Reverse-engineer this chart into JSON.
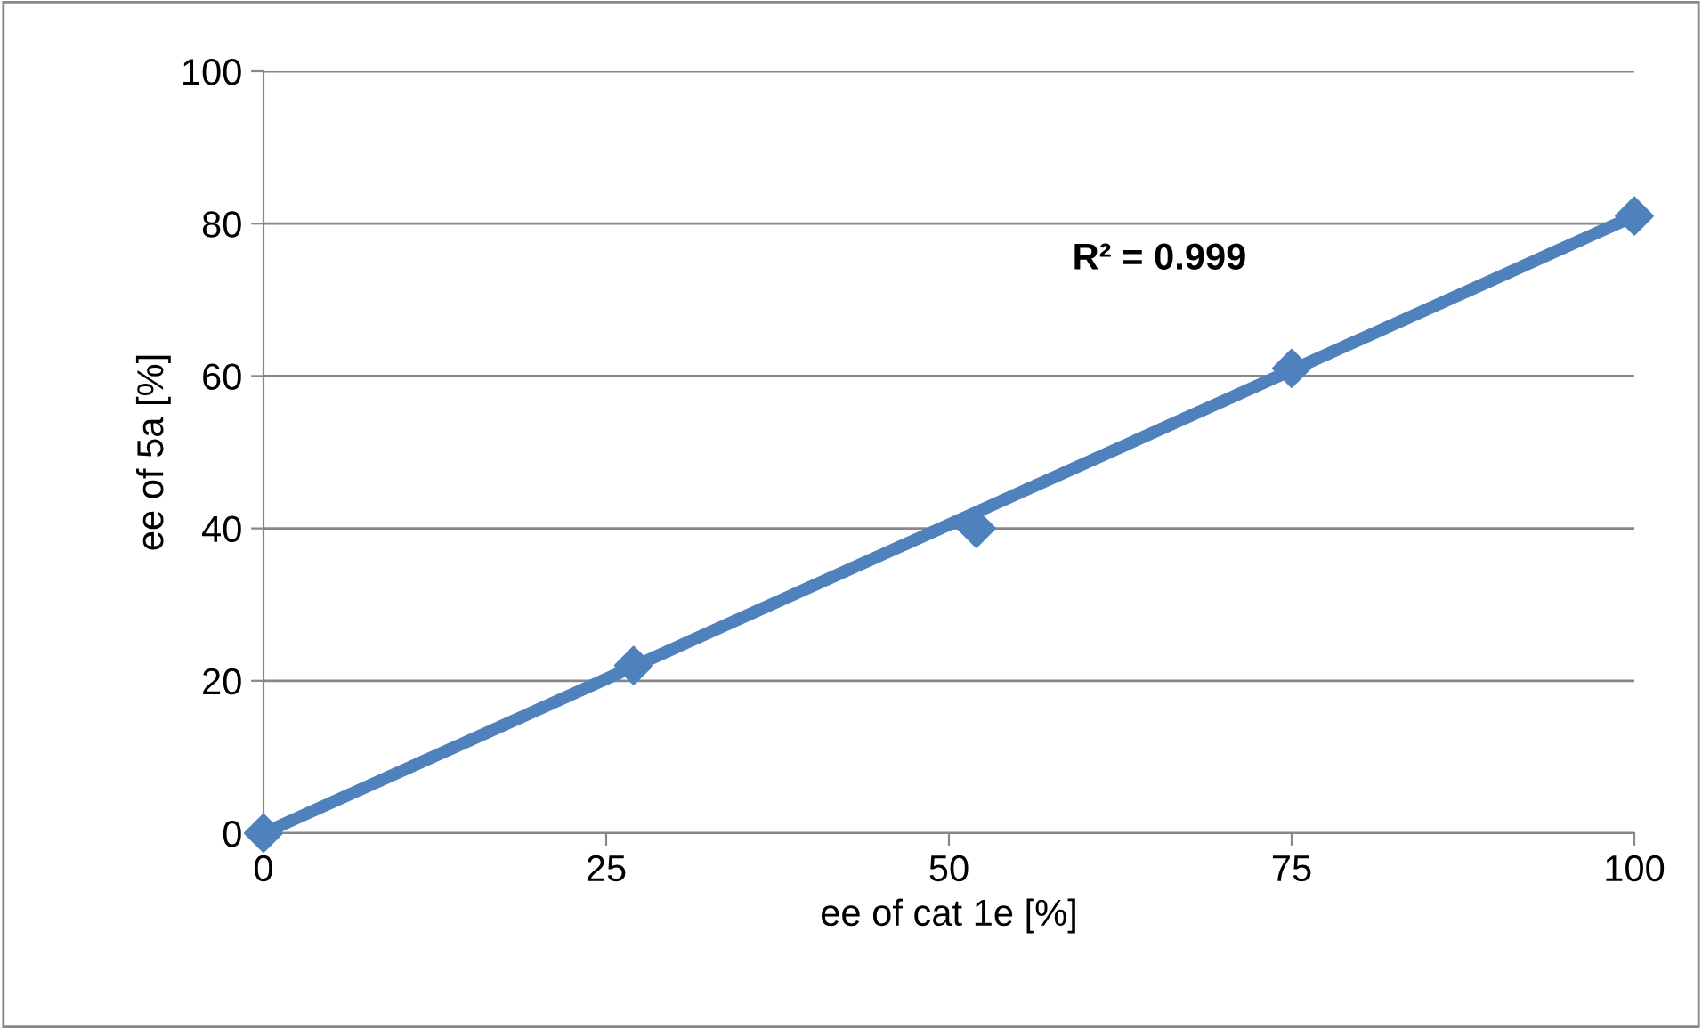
{
  "chart_data": {
    "type": "scatter",
    "xlabel": "ee of cat 1e [%]",
    "ylabel": "ee of 5a [%]",
    "series": [
      {
        "color": "#4f81bd",
        "x": [
          0,
          27,
          52,
          75,
          100
        ],
        "values": [
          0,
          22,
          40,
          61,
          81
        ],
        "marker": "diamond"
      },
      {
        "type": "line",
        "color": "#4f81bd",
        "x": [
          0,
          100
        ],
        "values": [
          0,
          81
        ],
        "marker": "none"
      }
    ],
    "annotations": [
      "R² = 0.999"
    ],
    "xlim": [
      0,
      100
    ],
    "xticks": [
      0,
      25,
      50,
      75,
      100
    ],
    "ylim": [
      0,
      100
    ],
    "yticks": [
      0,
      20,
      40,
      60,
      80,
      100
    ],
    "grid": "y",
    "legend": false
  }
}
